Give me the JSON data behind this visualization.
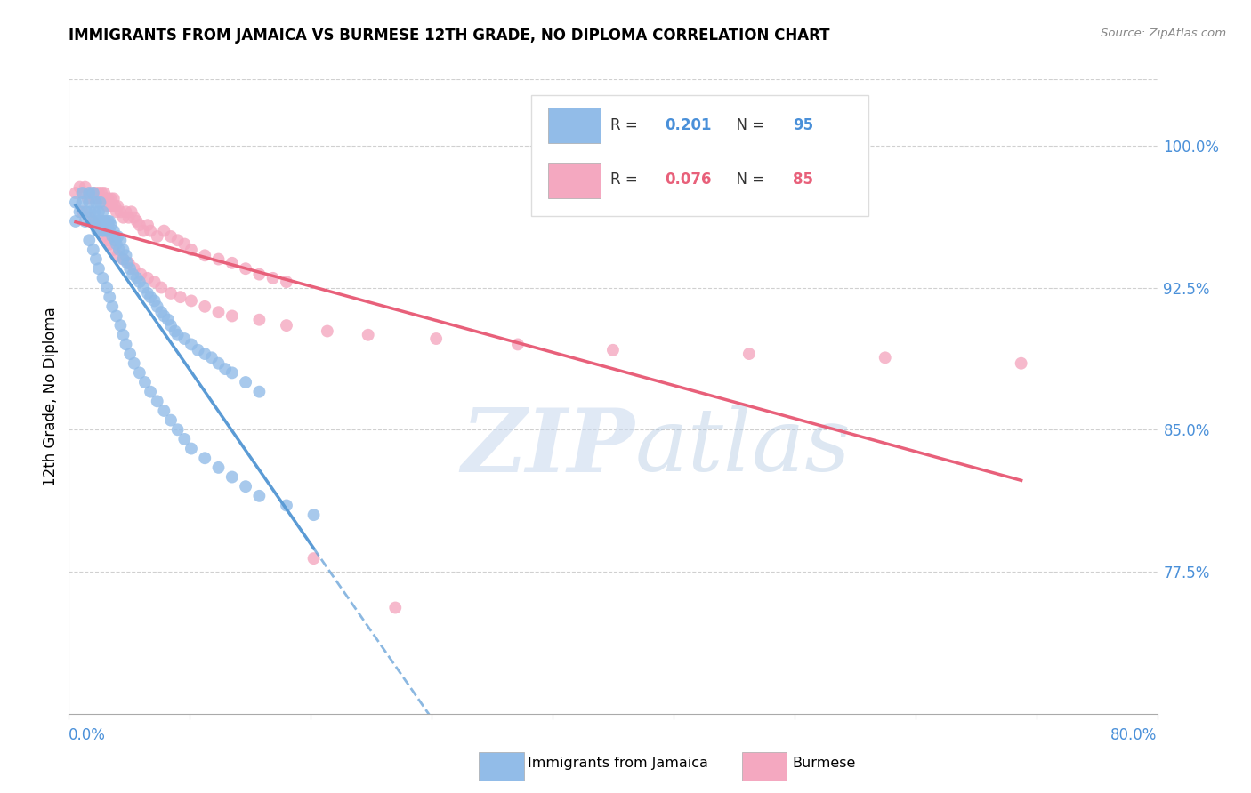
{
  "title": "IMMIGRANTS FROM JAMAICA VS BURMESE 12TH GRADE, NO DIPLOMA CORRELATION CHART",
  "source": "Source: ZipAtlas.com",
  "ylabel": "12th Grade, No Diploma",
  "ytick_labels": [
    "100.0%",
    "92.5%",
    "85.0%",
    "77.5%"
  ],
  "ytick_values": [
    1.0,
    0.925,
    0.85,
    0.775
  ],
  "xlim": [
    0.0,
    0.8
  ],
  "ylim": [
    0.7,
    1.035
  ],
  "jamaica_color": "#92bce8",
  "burmese_color": "#f4a8c0",
  "jamaica_line_color": "#5b9bd5",
  "burmese_line_color": "#e8607a",
  "background_color": "#ffffff",
  "grid_color": "#d0d0d0",
  "jamaica_R": 0.201,
  "jamaica_N": 95,
  "burmese_R": 0.076,
  "burmese_N": 85,
  "jamaica_scatter_x": [
    0.005,
    0.005,
    0.008,
    0.01,
    0.01,
    0.012,
    0.013,
    0.015,
    0.015,
    0.016,
    0.018,
    0.018,
    0.019,
    0.02,
    0.02,
    0.021,
    0.022,
    0.022,
    0.023,
    0.024,
    0.025,
    0.025,
    0.026,
    0.027,
    0.028,
    0.029,
    0.03,
    0.03,
    0.031,
    0.032,
    0.033,
    0.034,
    0.035,
    0.036,
    0.037,
    0.038,
    0.04,
    0.04,
    0.042,
    0.043,
    0.045,
    0.047,
    0.05,
    0.052,
    0.055,
    0.058,
    0.06,
    0.063,
    0.065,
    0.068,
    0.07,
    0.073,
    0.075,
    0.078,
    0.08,
    0.085,
    0.09,
    0.095,
    0.1,
    0.105,
    0.11,
    0.115,
    0.12,
    0.13,
    0.14,
    0.015,
    0.018,
    0.02,
    0.022,
    0.025,
    0.028,
    0.03,
    0.032,
    0.035,
    0.038,
    0.04,
    0.042,
    0.045,
    0.048,
    0.052,
    0.056,
    0.06,
    0.065,
    0.07,
    0.075,
    0.08,
    0.085,
    0.09,
    0.1,
    0.11,
    0.12,
    0.13,
    0.14,
    0.16,
    0.18
  ],
  "jamaica_scatter_y": [
    0.97,
    0.96,
    0.965,
    0.97,
    0.975,
    0.96,
    0.965,
    0.97,
    0.975,
    0.965,
    0.975,
    0.96,
    0.965,
    0.97,
    0.96,
    0.955,
    0.96,
    0.965,
    0.97,
    0.955,
    0.96,
    0.965,
    0.955,
    0.96,
    0.955,
    0.96,
    0.955,
    0.96,
    0.958,
    0.952,
    0.955,
    0.95,
    0.948,
    0.952,
    0.945,
    0.95,
    0.945,
    0.94,
    0.942,
    0.938,
    0.935,
    0.932,
    0.93,
    0.928,
    0.925,
    0.922,
    0.92,
    0.918,
    0.915,
    0.912,
    0.91,
    0.908,
    0.905,
    0.902,
    0.9,
    0.898,
    0.895,
    0.892,
    0.89,
    0.888,
    0.885,
    0.882,
    0.88,
    0.875,
    0.87,
    0.95,
    0.945,
    0.94,
    0.935,
    0.93,
    0.925,
    0.92,
    0.915,
    0.91,
    0.905,
    0.9,
    0.895,
    0.89,
    0.885,
    0.88,
    0.875,
    0.87,
    0.865,
    0.86,
    0.855,
    0.85,
    0.845,
    0.84,
    0.835,
    0.83,
    0.825,
    0.82,
    0.815,
    0.81,
    0.805
  ],
  "burmese_scatter_x": [
    0.005,
    0.008,
    0.01,
    0.012,
    0.014,
    0.015,
    0.016,
    0.018,
    0.019,
    0.02,
    0.021,
    0.022,
    0.023,
    0.024,
    0.025,
    0.026,
    0.027,
    0.028,
    0.029,
    0.03,
    0.031,
    0.032,
    0.033,
    0.034,
    0.035,
    0.036,
    0.038,
    0.04,
    0.042,
    0.044,
    0.046,
    0.048,
    0.05,
    0.052,
    0.055,
    0.058,
    0.06,
    0.065,
    0.07,
    0.075,
    0.08,
    0.085,
    0.09,
    0.1,
    0.11,
    0.12,
    0.13,
    0.14,
    0.15,
    0.16,
    0.01,
    0.015,
    0.018,
    0.02,
    0.022,
    0.025,
    0.028,
    0.03,
    0.033,
    0.036,
    0.04,
    0.044,
    0.048,
    0.053,
    0.058,
    0.063,
    0.068,
    0.075,
    0.082,
    0.09,
    0.1,
    0.11,
    0.12,
    0.14,
    0.16,
    0.19,
    0.22,
    0.27,
    0.33,
    0.4,
    0.5,
    0.6,
    0.7,
    0.18,
    0.24
  ],
  "burmese_scatter_y": [
    0.975,
    0.978,
    0.975,
    0.978,
    0.972,
    0.975,
    0.972,
    0.975,
    0.972,
    0.975,
    0.972,
    0.975,
    0.972,
    0.975,
    0.972,
    0.975,
    0.972,
    0.968,
    0.972,
    0.968,
    0.972,
    0.968,
    0.972,
    0.968,
    0.965,
    0.968,
    0.965,
    0.962,
    0.965,
    0.962,
    0.965,
    0.962,
    0.96,
    0.958,
    0.955,
    0.958,
    0.955,
    0.952,
    0.955,
    0.952,
    0.95,
    0.948,
    0.945,
    0.942,
    0.94,
    0.938,
    0.935,
    0.932,
    0.93,
    0.928,
    0.965,
    0.962,
    0.96,
    0.958,
    0.955,
    0.952,
    0.95,
    0.948,
    0.945,
    0.942,
    0.94,
    0.938,
    0.935,
    0.932,
    0.93,
    0.928,
    0.925,
    0.922,
    0.92,
    0.918,
    0.915,
    0.912,
    0.91,
    0.908,
    0.905,
    0.902,
    0.9,
    0.898,
    0.895,
    0.892,
    0.89,
    0.888,
    0.885,
    0.782,
    0.756
  ]
}
